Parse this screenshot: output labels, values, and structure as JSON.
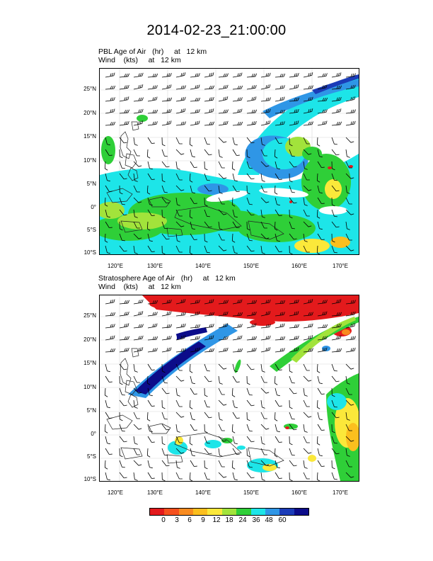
{
  "title": "2014-02-23_21:00:00",
  "panels": [
    {
      "field_label": "PBL Age of Air   (hr)     at   12 km",
      "wind_label": "Wind    (kts)     at   12 km"
    },
    {
      "field_label": "Stratosphere Age of Air   (hr)     at   12 km",
      "wind_label": "Wind    (kts)     at   12 km"
    }
  ],
  "lat_labels": [
    "25°N",
    "20°N",
    "15°N",
    "10°N",
    "5°N",
    "0°",
    "5°S",
    "10°S"
  ],
  "lon_labels": [
    "120°E",
    "130°E",
    "140°E",
    "150°E",
    "160°E",
    "170°E"
  ],
  "colorbar": {
    "colors": [
      "#ffffff",
      "#e31a1c",
      "#f5501e",
      "#f88b1f",
      "#fbbf1e",
      "#fbe83a",
      "#a2e33b",
      "#2fcf38",
      "#1de5e8",
      "#2f96e6",
      "#1b3cb8",
      "#0c0c8a"
    ],
    "labels": [
      "0",
      "3",
      "6",
      "9",
      "12",
      "18",
      "24",
      "36",
      "48",
      "60"
    ]
  },
  "icons": {
    "wind_barb": "wind-barb-icon",
    "coastline": "coastline"
  }
}
